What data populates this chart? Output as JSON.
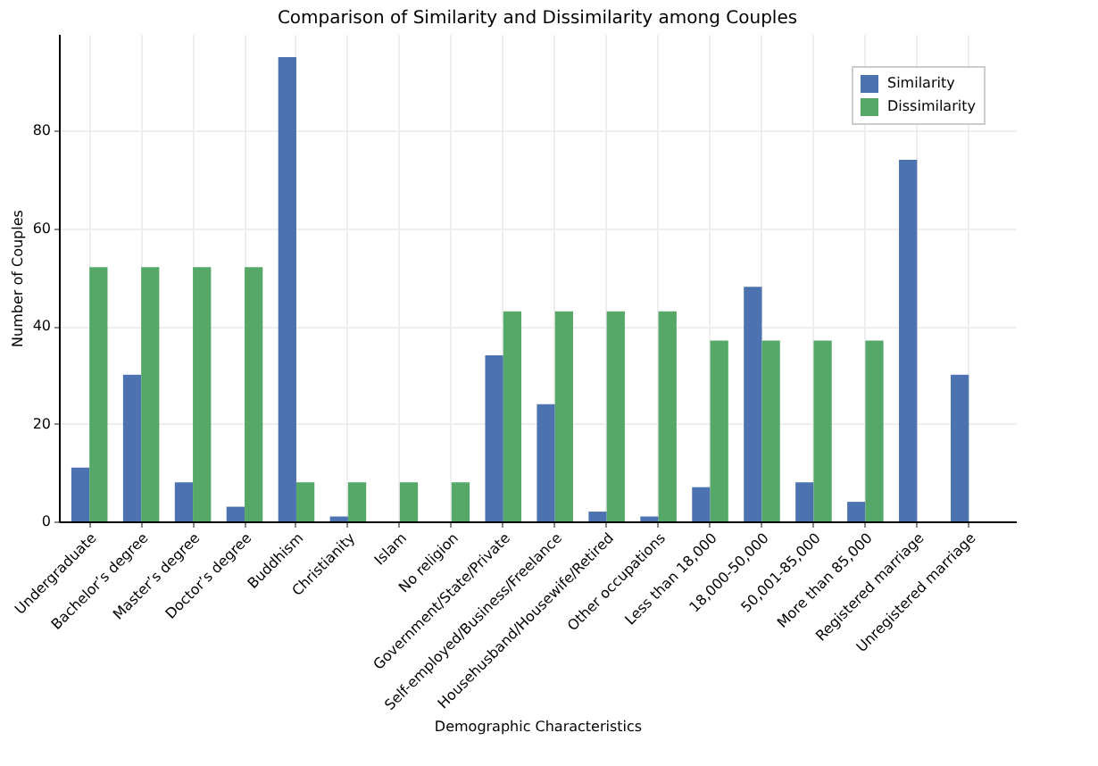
{
  "chart_data": {
    "type": "bar",
    "title": "Comparison of Similarity and Dissimilarity among Couples",
    "xlabel": "Demographic Characteristics",
    "ylabel": "Number of Couples",
    "categories": [
      "Undergraduate",
      "Bachelor’s degree",
      "Master’s degree",
      "Doctor’s degree",
      "Buddhism",
      "Christianity",
      "Islam",
      "No religion",
      "Government/State/Private",
      "Self-employed/Business/Freelance",
      "Househusband/Housewife/Retired",
      "Other occupations",
      "Less than 18,000",
      "18,000-50,000",
      "50,001-85,000",
      "More than 85,000",
      "Registered marriage",
      "Unregistered marriage"
    ],
    "series": [
      {
        "name": "Similarity",
        "color": "#4c72b0",
        "values": [
          11,
          30,
          8,
          3,
          95,
          1,
          0,
          0,
          34,
          24,
          2,
          1,
          7,
          48,
          8,
          4,
          74,
          30
        ]
      },
      {
        "name": "Dissimilarity",
        "color": "#55a868",
        "values": [
          52,
          52,
          52,
          52,
          8,
          8,
          8,
          8,
          43,
          43,
          43,
          43,
          37,
          37,
          37,
          37,
          0,
          0
        ]
      }
    ],
    "ylim": [
      0,
      99.75
    ],
    "yticks": [
      0,
      20,
      40,
      60,
      80
    ],
    "grid": true,
    "legend": "top right"
  }
}
